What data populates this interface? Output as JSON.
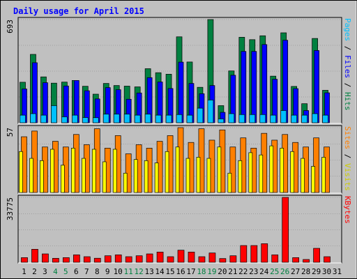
{
  "chart_data": {
    "type": "bar",
    "title": "Daily usage for April 2015",
    "categories": [
      "1",
      "2",
      "3",
      "4",
      "5",
      "6",
      "7",
      "8",
      "9",
      "10",
      "11",
      "12",
      "13",
      "14",
      "15",
      "16",
      "17",
      "18",
      "19",
      "20",
      "21",
      "22",
      "23",
      "24",
      "25",
      "26",
      "27",
      "28",
      "29",
      "30",
      "31"
    ],
    "weekend_days": [
      4,
      5,
      11,
      12,
      18,
      19,
      25,
      26
    ],
    "panels": [
      {
        "id": "hits",
        "ylim": [
          0,
          693
        ],
        "y_tick_label": "693",
        "right_labels": [
          "Pages",
          "Files",
          "Hits"
        ],
        "series": [
          {
            "name": "Hits",
            "color": "#008040",
            "values": [
              272,
              459,
              308,
              266,
              273,
              284,
              245,
              192,
              264,
              250,
              246,
              241,
              363,
              336,
              326,
              577,
              408,
              238,
              693,
              115,
              348,
              574,
              558,
              584,
              313,
              604,
              244,
              128,
              566,
              218,
              0
            ]
          },
          {
            "name": "Files",
            "color": "#0000ff",
            "values": [
              227,
              403,
              269,
              0,
              247,
              284,
              215,
              160,
              236,
              222,
              158,
              200,
              303,
              274,
              230,
              407,
              264,
              195,
              250,
              70,
              319,
              479,
              479,
              525,
              292,
              554,
              229,
              82,
              485,
              201,
              0
            ]
          },
          {
            "name": "Pages",
            "color": "#00c0ff",
            "values": [
              51,
              61,
              51,
              115,
              40,
              51,
              35,
              34,
              58,
              58,
              58,
              51,
              58,
              51,
              51,
              55,
              51,
              98,
              153,
              26,
              61,
              55,
              55,
              55,
              51,
              82,
              51,
              51,
              61,
              51,
              0
            ]
          }
        ]
      },
      {
        "id": "visits",
        "ylim": [
          0,
          57
        ],
        "y_tick_label": "57",
        "right_labels": [
          "Sites",
          "Visits"
        ],
        "series": [
          {
            "name": "Sites",
            "color": "#ff8000",
            "values": [
              49,
              54,
              40,
              45,
              40,
              51,
              42,
              56,
              39,
              50,
              34,
              42,
              39,
              45,
              50,
              57,
              44,
              56,
              46,
              55,
              40,
              48,
              39,
              52,
              46,
              51,
              44,
              40,
              48,
              40,
              0
            ]
          },
          {
            "name": "Visits",
            "color": "#ffff00",
            "values": [
              36,
              30,
              28,
              38,
              24,
              39,
              30,
              38,
              27,
              38,
              17,
              29,
              28,
              26,
              36,
              40,
              30,
              31,
              30,
              40,
              17,
              28,
              35,
              33,
              41,
              39,
              36,
              30,
              23,
              31,
              0
            ]
          }
        ]
      },
      {
        "id": "kbytes",
        "ylim": [
          0,
          33775
        ],
        "y_tick_label": "33775",
        "right_labels": [
          "KBytes"
        ],
        "series": [
          {
            "name": "KBytes",
            "color": "#ff0000",
            "values": [
              2418,
              6771,
              4354,
              2062,
              2418,
              3870,
              2902,
              2096,
              3387,
              3870,
              2902,
              3387,
              4354,
              5320,
              2902,
              6288,
              5320,
              2902,
              4837,
              1935,
              3387,
              8706,
              8706,
              9673,
              3870,
              33775,
              2418,
              1451,
              7256,
              2902,
              0
            ]
          }
        ]
      }
    ]
  },
  "colors": {
    "frame_bg": "#c0c0c0",
    "title": "#0000ff",
    "weekday_label": "#000000",
    "weekend_label": "#008040",
    "grid": "#808080"
  }
}
